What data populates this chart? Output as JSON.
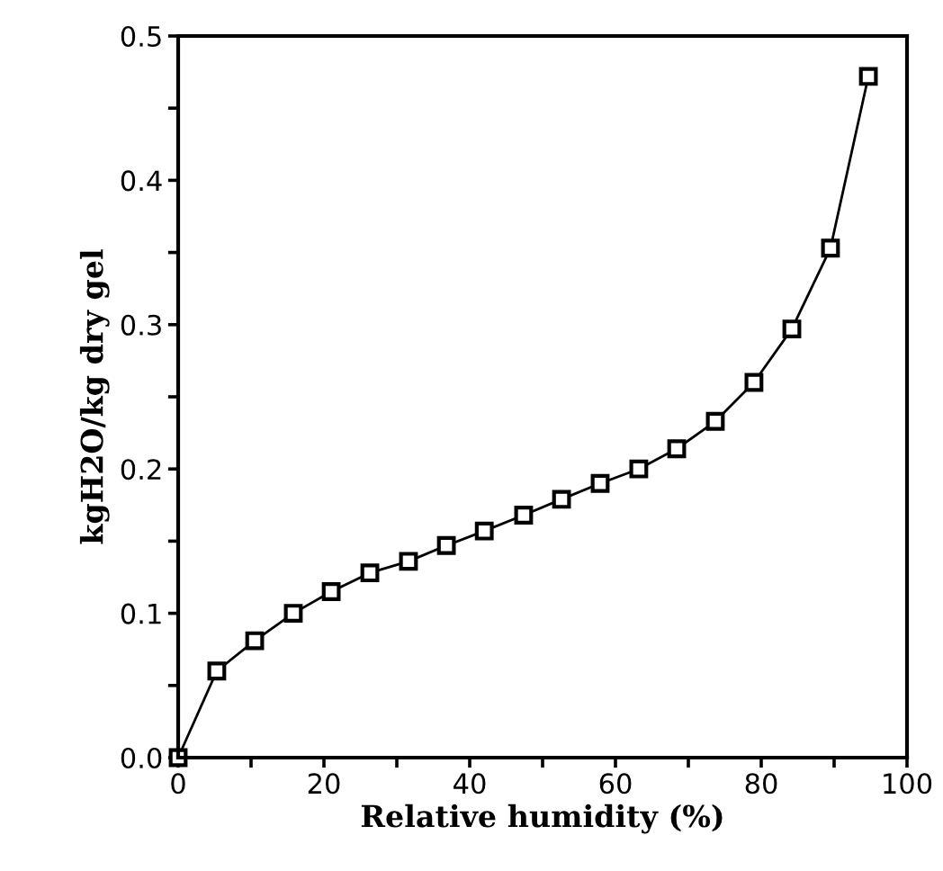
{
  "chart_data": {
    "type": "line",
    "xlabel": "Relative humidity (%)",
    "ylabel": "kgH2O/kg dry gel",
    "x": [
      0,
      5.3,
      10.5,
      15.8,
      21,
      26.3,
      31.6,
      36.8,
      42,
      47.4,
      52.6,
      57.9,
      63.2,
      68.4,
      73.7,
      79,
      84.2,
      89.5,
      94.7
    ],
    "series": [
      {
        "color": "#000000",
        "values": [
          0,
          0.06,
          0.081,
          0.1,
          0.115,
          0.128,
          0.136,
          0.147,
          0.157,
          0.168,
          0.179,
          0.19,
          0.2,
          0.214,
          0.233,
          0.26,
          0.297,
          0.353,
          0.472
        ]
      }
    ],
    "xlim": [
      0,
      100
    ],
    "ylim": [
      0,
      0.5
    ],
    "xticks": [
      0,
      {
        "value": 10,
        "label": null
      },
      20,
      {
        "value": 30,
        "label": null
      },
      40,
      {
        "value": 50,
        "label": null
      },
      60,
      {
        "value": 70,
        "label": null
      },
      80,
      {
        "value": 90,
        "label": null
      },
      100
    ],
    "yticks": [
      {
        "value": 0,
        "label": "0.0"
      },
      {
        "value": 0.05,
        "label": null
      },
      0.1,
      {
        "value": 0.15,
        "label": null
      },
      0.2,
      {
        "value": 0.25,
        "label": null
      },
      0.3,
      {
        "value": 0.35,
        "label": null
      },
      0.4,
      {
        "value": 0.45,
        "label": null
      },
      0.5
    ],
    "marker": "square",
    "line_style": "solid",
    "grid": false,
    "legend": false
  }
}
